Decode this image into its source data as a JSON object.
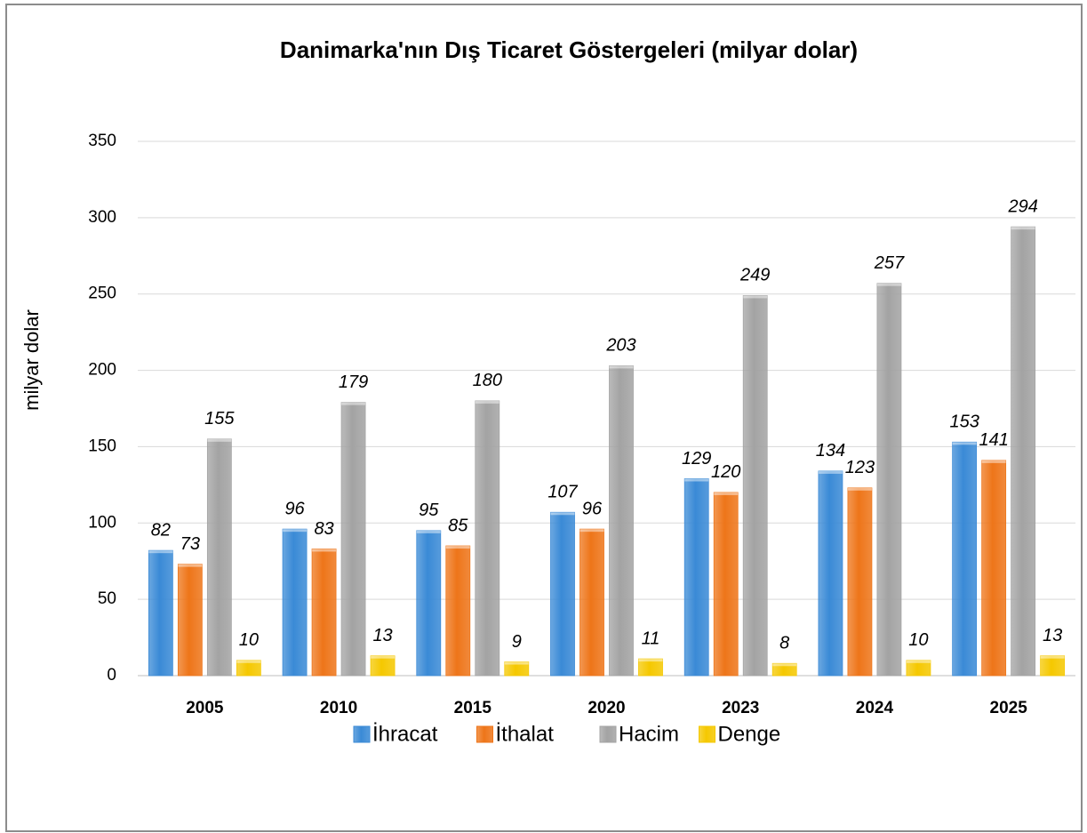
{
  "chart_data": {
    "type": "bar",
    "title": "Danimarka'nın Dış Ticaret Göstergeleri (milyar dolar)",
    "y_label": "milyar dolar",
    "categories": [
      "2005",
      "2010",
      "2015",
      "2020",
      "2023",
      "2024",
      "2025"
    ],
    "series": [
      {
        "name": "İhracat",
        "color": "#3a8ad6",
        "values": [
          82,
          96,
          95,
          107,
          129,
          134,
          153
        ]
      },
      {
        "name": "İthalat",
        "color": "#ee7519",
        "values": [
          73,
          83,
          85,
          96,
          120,
          123,
          141
        ]
      },
      {
        "name": "Hacim",
        "color": "#a3a3a3",
        "values": [
          155,
          179,
          180,
          203,
          249,
          257,
          294
        ]
      },
      {
        "name": "Denge",
        "color": "#f5c800",
        "values": [
          10,
          13,
          9,
          11,
          8,
          10,
          13
        ]
      }
    ],
    "ylim": [
      0,
      350
    ],
    "yticks": [
      0,
      50,
      100,
      150,
      200,
      250,
      300,
      350
    ],
    "grid": true,
    "legend": "bottom"
  }
}
